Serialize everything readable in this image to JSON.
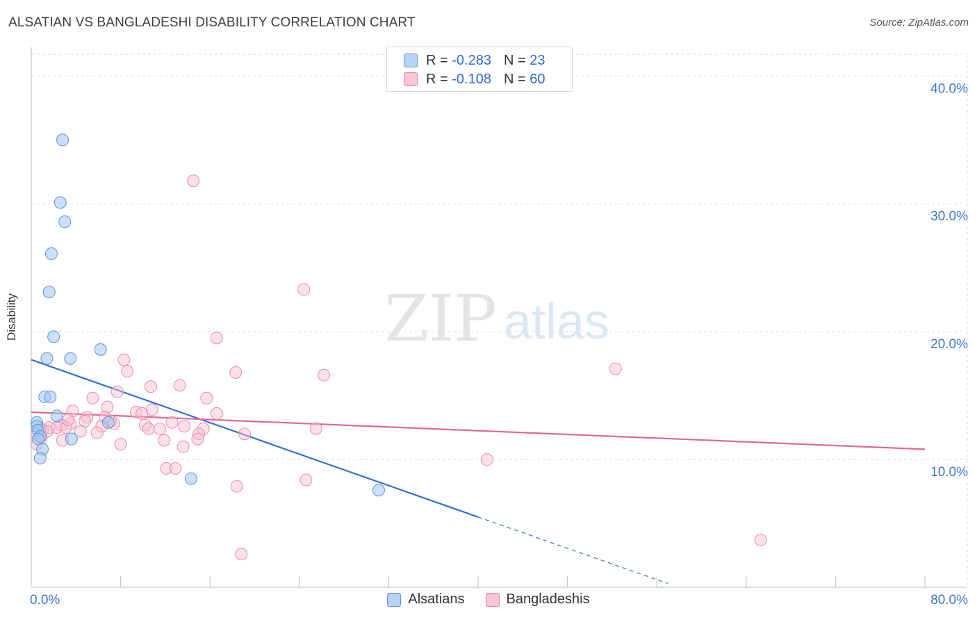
{
  "header": {
    "title": "ALSATIAN VS BANGLADESHI DISABILITY CORRELATION CHART",
    "source": "Source: ZipAtlas.com"
  },
  "watermark": {
    "zip": "ZIP",
    "atlas": "atlas"
  },
  "legend": {
    "r_label": "R =",
    "n_label": "N =",
    "series": [
      {
        "name": "Alsatians",
        "r": "-0.283",
        "n": "23",
        "color": "#5b9be0",
        "fill": "#b9d3f5"
      },
      {
        "name": "Bangladeshis",
        "r": "-0.108",
        "n": "60",
        "color": "#e8829f",
        "fill": "#f8c6d4"
      }
    ]
  },
  "chart_data": {
    "type": "scatter",
    "title": "ALSATIAN VS BANGLADESHI DISABILITY CORRELATION CHART",
    "xlabel": "",
    "ylabel": "Disability",
    "xlim": [
      0,
      80
    ],
    "ylim": [
      0,
      41.7
    ],
    "x_tick_labels": [
      "0.0%",
      "80.0%"
    ],
    "y_ticks": [
      10,
      20,
      30,
      40
    ],
    "y_tick_labels": [
      "10.0%",
      "20.0%",
      "30.0%",
      "40.0%"
    ],
    "grid": true,
    "series": [
      {
        "name": "Alsatians",
        "color": "#2f6fd6",
        "points": [
          [
            2.8,
            35.0
          ],
          [
            2.6,
            30.1
          ],
          [
            3.0,
            28.6
          ],
          [
            1.8,
            26.1
          ],
          [
            1.6,
            23.1
          ],
          [
            2.0,
            19.6
          ],
          [
            6.2,
            18.6
          ],
          [
            1.4,
            17.9
          ],
          [
            3.5,
            17.9
          ],
          [
            1.2,
            14.9
          ],
          [
            1.7,
            14.9
          ],
          [
            2.3,
            13.4
          ],
          [
            0.5,
            12.9
          ],
          [
            0.5,
            12.6
          ],
          [
            0.6,
            12.3
          ],
          [
            0.8,
            11.8
          ],
          [
            0.6,
            11.6
          ],
          [
            3.6,
            11.6
          ],
          [
            1.0,
            10.8
          ],
          [
            0.8,
            10.1
          ],
          [
            6.9,
            12.9
          ],
          [
            14.3,
            8.5
          ],
          [
            31.1,
            7.6
          ]
        ],
        "trend": {
          "x0": 0,
          "y0": 17.8,
          "x1": 40,
          "y1": 5.5,
          "solid_until": 40,
          "dashed_to": 57,
          "dashed_to_y": 0.3
        }
      },
      {
        "name": "Bangladeshis",
        "color": "#e0688e",
        "points": [
          [
            14.5,
            31.8
          ],
          [
            24.4,
            23.3
          ],
          [
            16.6,
            19.5
          ],
          [
            52.3,
            17.1
          ],
          [
            8.3,
            17.8
          ],
          [
            18.3,
            16.8
          ],
          [
            26.2,
            16.6
          ],
          [
            8.6,
            16.9
          ],
          [
            10.7,
            15.7
          ],
          [
            13.3,
            15.8
          ],
          [
            7.7,
            15.3
          ],
          [
            5.5,
            14.8
          ],
          [
            15.7,
            14.8
          ],
          [
            6.8,
            14.1
          ],
          [
            3.7,
            13.8
          ],
          [
            9.4,
            13.7
          ],
          [
            9.9,
            13.6
          ],
          [
            10.8,
            13.9
          ],
          [
            16.6,
            13.6
          ],
          [
            5.0,
            13.3
          ],
          [
            6.6,
            13.3
          ],
          [
            7.1,
            13.0
          ],
          [
            4.8,
            13.0
          ],
          [
            3.5,
            12.8
          ],
          [
            2.7,
            12.7
          ],
          [
            7.4,
            12.8
          ],
          [
            10.2,
            12.7
          ],
          [
            12.6,
            12.9
          ],
          [
            13.7,
            12.6
          ],
          [
            6.3,
            12.6
          ],
          [
            1.6,
            12.5
          ],
          [
            2.3,
            12.5
          ],
          [
            3.1,
            12.5
          ],
          [
            1.0,
            12.3
          ],
          [
            1.4,
            12.2
          ],
          [
            0.8,
            12.4
          ],
          [
            10.5,
            12.4
          ],
          [
            11.5,
            12.4
          ],
          [
            15.4,
            12.4
          ],
          [
            15.0,
            12.0
          ],
          [
            25.5,
            12.4
          ],
          [
            4.4,
            12.2
          ],
          [
            5.9,
            12.1
          ],
          [
            19.1,
            12.0
          ],
          [
            0.5,
            12.0
          ],
          [
            0.9,
            11.7
          ],
          [
            14.9,
            11.6
          ],
          [
            0.5,
            11.2
          ],
          [
            2.8,
            11.5
          ],
          [
            11.9,
            11.5
          ],
          [
            8.0,
            11.2
          ],
          [
            13.6,
            11.0
          ],
          [
            40.8,
            10.0
          ],
          [
            12.1,
            9.3
          ],
          [
            12.9,
            9.3
          ],
          [
            24.6,
            8.4
          ],
          [
            18.4,
            7.9
          ],
          [
            65.3,
            3.7
          ],
          [
            18.8,
            2.6
          ],
          [
            3.3,
            13.1
          ]
        ],
        "trend": {
          "x0": 0,
          "y0": 13.7,
          "x1": 80,
          "y1": 10.8
        }
      }
    ]
  }
}
